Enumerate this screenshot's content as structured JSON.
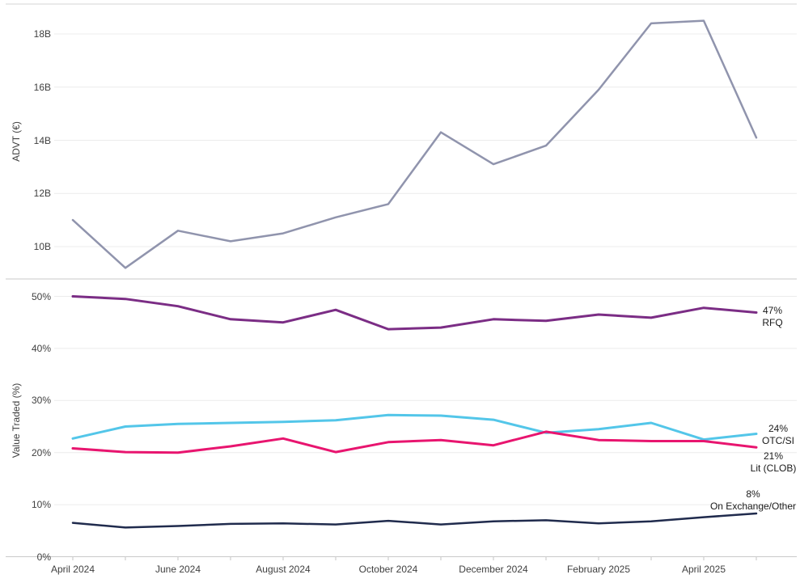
{
  "chart_data": [
    {
      "type": "line",
      "panel": "top",
      "title": "",
      "xlabel": "",
      "ylabel": "ADVT (€)",
      "grid": true,
      "legend_position": "none",
      "y_tick_labels": [
        "18B",
        "16B",
        "14B",
        "12B",
        "10B"
      ],
      "ylim": [
        8.7,
        19.1
      ],
      "x": [
        "Apr 2024",
        "May 2024",
        "Jun 2024",
        "Jul 2024",
        "Aug 2024",
        "Sep 2024",
        "Oct 2024",
        "Nov 2024",
        "Dec 2024",
        "Jan 2025",
        "Feb 2025",
        "Mar 2025",
        "Apr 2025",
        "May 2025"
      ],
      "x_tick_labels": [
        "April 2024",
        "June 2024",
        "August 2024",
        "October 2024",
        "December 2024",
        "February 2025",
        "April 2025"
      ],
      "series": [
        {
          "name": "ADVT",
          "color": "#9094ad",
          "values": [
            11.0,
            9.2,
            10.6,
            10.2,
            10.5,
            11.1,
            11.6,
            14.3,
            13.1,
            13.8,
            15.9,
            18.4,
            18.5,
            14.1
          ]
        }
      ]
    },
    {
      "type": "line",
      "panel": "bottom",
      "title": "",
      "xlabel": "",
      "ylabel": "Value Traded (%)",
      "grid": true,
      "legend_position": "right-end-labels",
      "y_tick_labels": [
        "50%",
        "40%",
        "30%",
        "20%",
        "10%",
        "0%"
      ],
      "ylim": [
        0,
        53.5
      ],
      "x": [
        "Apr 2024",
        "May 2024",
        "Jun 2024",
        "Jul 2024",
        "Aug 2024",
        "Sep 2024",
        "Oct 2024",
        "Nov 2024",
        "Dec 2024",
        "Jan 2025",
        "Feb 2025",
        "Mar 2025",
        "Apr 2025",
        "May 2025"
      ],
      "x_tick_labels": [
        "April 2024",
        "June 2024",
        "August 2024",
        "October 2024",
        "December 2024",
        "February 2025",
        "April 2025"
      ],
      "series": [
        {
          "name": "RFQ",
          "end_label": "47%",
          "color": "#7b2d85",
          "values": [
            50.0,
            49.5,
            48.1,
            45.6,
            45.0,
            47.4,
            43.7,
            44.0,
            45.6,
            45.3,
            46.5,
            45.9,
            47.8,
            46.9
          ]
        },
        {
          "name": "OTC/SI",
          "end_label": "24%",
          "color": "#53c6e9",
          "values": [
            22.7,
            25.0,
            25.5,
            25.7,
            25.9,
            26.2,
            27.2,
            27.1,
            26.3,
            23.8,
            24.5,
            25.7,
            22.5,
            23.6
          ]
        },
        {
          "name": "Lit (CLOB)",
          "end_label": "21%",
          "color": "#e8156f",
          "values": [
            20.8,
            20.1,
            20.0,
            21.2,
            22.7,
            20.1,
            22.0,
            22.4,
            21.4,
            24.0,
            22.4,
            22.2,
            22.2,
            21.0
          ]
        },
        {
          "name": "On Exchange/Other",
          "end_label": "8%",
          "color": "#202b4d",
          "values": [
            6.5,
            5.6,
            5.9,
            6.3,
            6.4,
            6.2,
            6.9,
            6.2,
            6.8,
            7.0,
            6.4,
            6.8,
            7.6,
            8.3
          ]
        }
      ]
    }
  ]
}
